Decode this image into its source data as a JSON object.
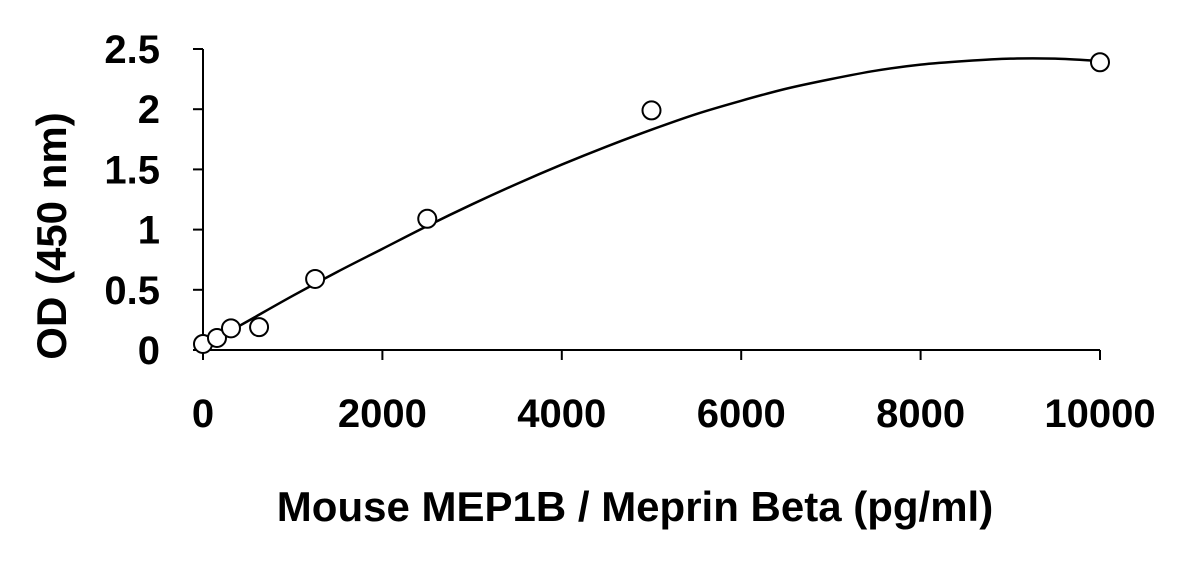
{
  "chart_data": {
    "type": "scatter",
    "title": "",
    "xlabel": "Mouse MEP1B / Meprin Beta (pg/ml)",
    "ylabel": "OD (450 nm)",
    "xlim": [
      0,
      10000
    ],
    "ylim": [
      0,
      2.5
    ],
    "x_ticks": [
      0,
      2000,
      4000,
      6000,
      8000,
      10000
    ],
    "x_tick_labels": [
      "0",
      "2000",
      "4000",
      "6000",
      "8000",
      "10000"
    ],
    "y_ticks": [
      0,
      0.5,
      1,
      1.5,
      2,
      2.5
    ],
    "y_tick_labels": [
      "0",
      "0.5",
      "1",
      "1.5",
      "2",
      "2.5"
    ],
    "grid": false,
    "legend": "none",
    "series": [
      {
        "marker": "open-circle",
        "points": [
          {
            "x": 0,
            "y": 0.05
          },
          {
            "x": 156,
            "y": 0.1
          },
          {
            "x": 312,
            "y": 0.18
          },
          {
            "x": 625,
            "y": 0.19
          },
          {
            "x": 1250,
            "y": 0.59
          },
          {
            "x": 2500,
            "y": 1.09
          },
          {
            "x": 5000,
            "y": 1.99
          },
          {
            "x": 10000,
            "y": 2.39
          }
        ]
      }
    ],
    "fit_curve": {
      "type": "polynomial",
      "x": [
        0,
        500,
        1000,
        1500,
        2000,
        2500,
        3000,
        3500,
        4000,
        4500,
        5000,
        5500,
        6000,
        6500,
        7000,
        7500,
        8000,
        8500,
        9000,
        9500,
        10000
      ],
      "y": [
        0.03,
        0.24,
        0.45,
        0.65,
        0.84,
        1.03,
        1.21,
        1.38,
        1.54,
        1.69,
        1.83,
        1.96,
        2.07,
        2.17,
        2.25,
        2.32,
        2.37,
        2.4,
        2.42,
        2.42,
        2.4
      ]
    },
    "colors": {
      "line": "#000000",
      "marker_stroke": "#000000",
      "marker_fill": "#ffffff",
      "background": "#ffffff"
    }
  }
}
